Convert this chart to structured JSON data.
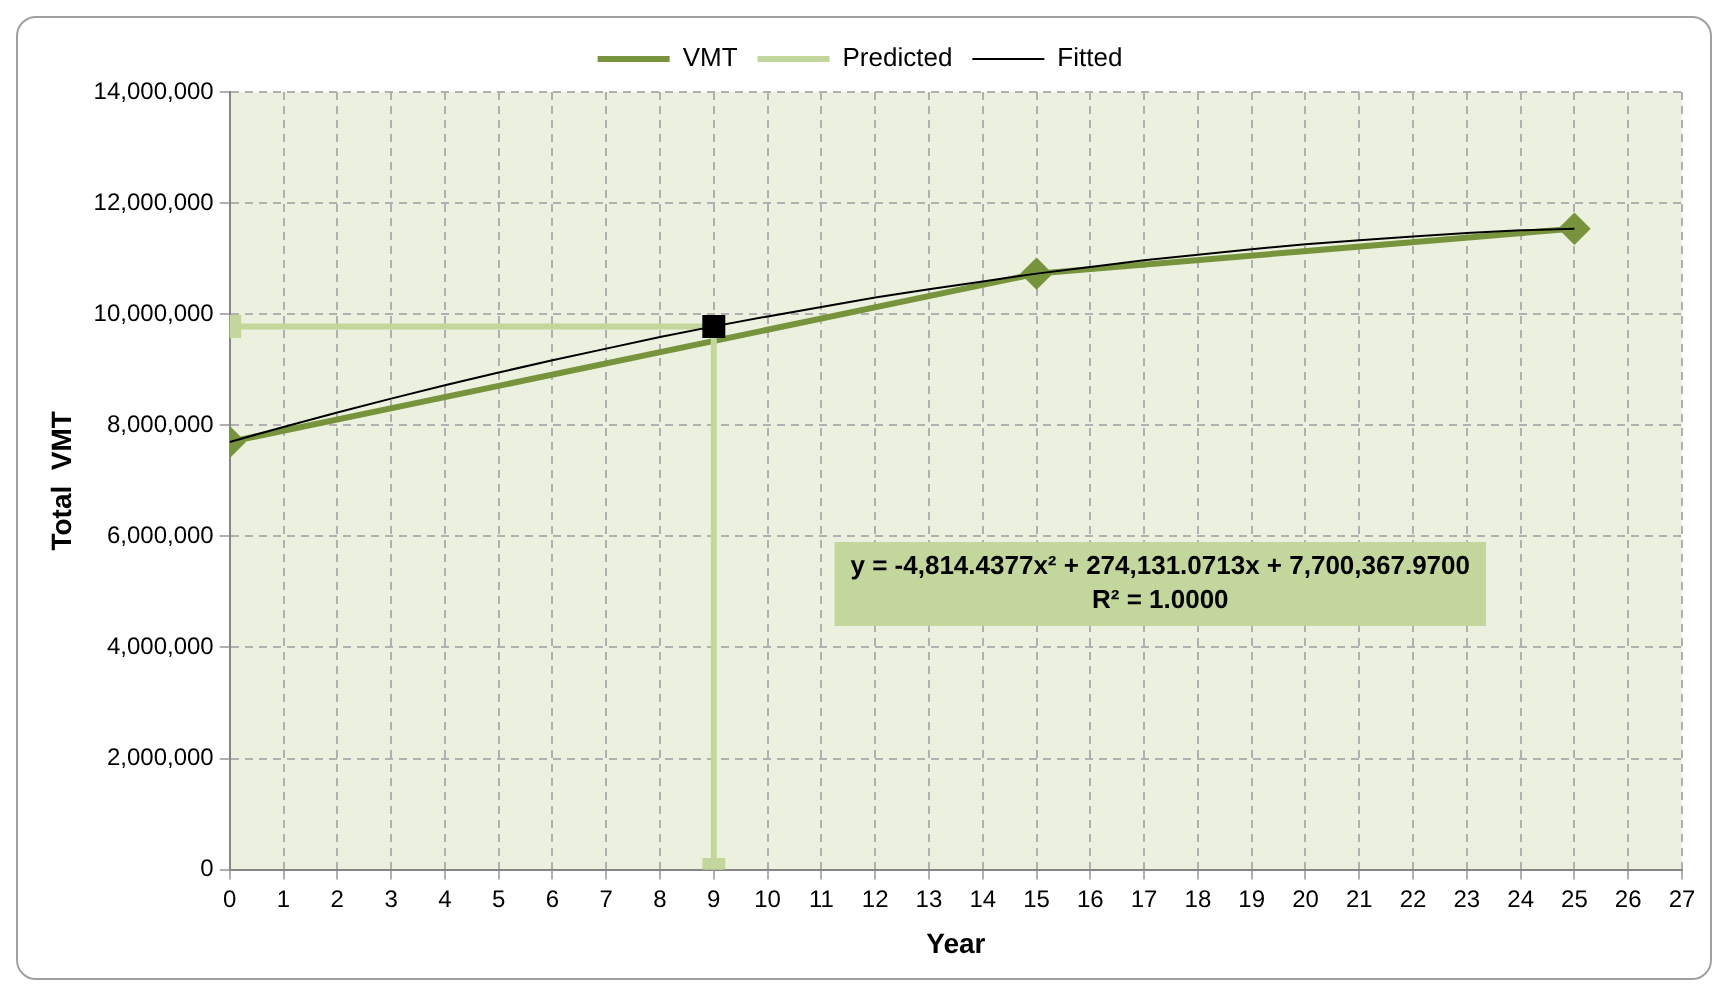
{
  "chart_data": {
    "type": "line",
    "xlabel": "Year",
    "ylabel": "Total  VMT",
    "xlim": [
      0,
      27
    ],
    "xticks": [
      0,
      1,
      2,
      3,
      4,
      5,
      6,
      7,
      8,
      9,
      10,
      11,
      12,
      13,
      14,
      15,
      16,
      17,
      18,
      19,
      20,
      21,
      22,
      23,
      24,
      25,
      26,
      27
    ],
    "ylim": [
      0,
      14000000
    ],
    "yticks": [
      {
        "value": 0,
        "label": "0"
      },
      {
        "value": 2000000,
        "label": "2,000,000"
      },
      {
        "value": 4000000,
        "label": "4,000,000"
      },
      {
        "value": 6000000,
        "label": "6,000,000"
      },
      {
        "value": 8000000,
        "label": "8,000,000"
      },
      {
        "value": 10000000,
        "label": "10,000,000"
      },
      {
        "value": 12000000,
        "label": "12,000,000"
      },
      {
        "value": 14000000,
        "label": "14,000,000"
      }
    ],
    "grid": true,
    "legend": "top",
    "series": [
      {
        "name": "VMT",
        "color": "#77933c",
        "marker": "diamond",
        "x": [
          0,
          15,
          25
        ],
        "values": [
          7700000,
          10730000,
          11540000
        ]
      },
      {
        "name": "Predicted",
        "color": "#c3d69b",
        "marker": "square",
        "colors": [
          "#c3d69b",
          "#000000",
          "#c3d69b"
        ],
        "x": [
          0,
          9,
          9
        ],
        "values": [
          9780000,
          9780000,
          0
        ]
      },
      {
        "name": "Fitted",
        "color": "#000000",
        "marker": "none",
        "x": [
          0,
          1,
          2,
          3,
          4,
          5,
          6,
          7,
          8,
          9,
          10,
          11,
          12,
          13,
          14,
          15,
          16,
          17,
          18,
          19,
          20,
          21,
          22,
          23,
          24,
          25
        ],
        "values": [
          7700000,
          7970000,
          8230000,
          8480000,
          8720000,
          8950000,
          9170000,
          9380000,
          9590000,
          9780000,
          9960000,
          10130000,
          10300000,
          10450000,
          10590000,
          10730000,
          10850000,
          10970000,
          11070000,
          11170000,
          11260000,
          11330000,
          11400000,
          11460000,
          11510000,
          11540000
        ]
      }
    ],
    "annotations": [
      "y = -4,814.4377x² + 274,131.0713x + 7,700,367.9700",
      "R² = 1.0000"
    ]
  }
}
